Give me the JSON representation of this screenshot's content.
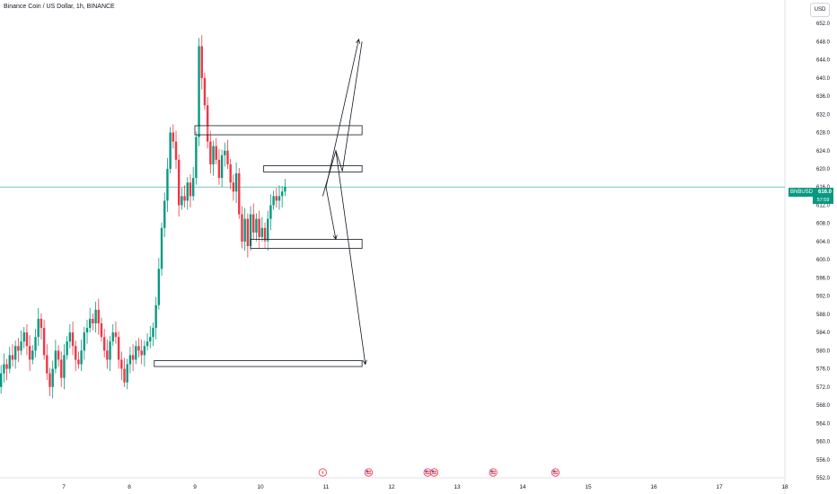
{
  "header": {
    "title": "Binance Coin / US Dollar, 1h, BINANCE",
    "currency": "USD"
  },
  "price_tag": {
    "symbol": "BNBUSD",
    "value": "616.0",
    "timer": "57:59"
  },
  "colors": {
    "up": "#089981",
    "down": "#f23645",
    "price_line": "#26a69a",
    "annotation": "#131722"
  },
  "chart_data": {
    "type": "candlestick",
    "ylim": [
      552,
      654
    ],
    "yticks": [
      "552.0",
      "556.0",
      "560.0",
      "564.0",
      "568.0",
      "572.0",
      "576.0",
      "580.0",
      "584.0",
      "588.0",
      "592.0",
      "596.0",
      "600.0",
      "604.0",
      "608.0",
      "612.0",
      "616.0",
      "620.0",
      "624.0",
      "628.0",
      "632.0",
      "636.0",
      "640.0",
      "644.0",
      "648.0",
      "652.0"
    ],
    "xticks": [
      {
        "label": "7",
        "day": 7
      },
      {
        "label": "8",
        "day": 8
      },
      {
        "label": "9",
        "day": 9
      },
      {
        "label": "10",
        "day": 10
      },
      {
        "label": "11",
        "day": 11
      },
      {
        "label": "12",
        "day": 12
      },
      {
        "label": "13",
        "day": 13
      },
      {
        "label": "14",
        "day": 14
      },
      {
        "label": "15",
        "day": 15
      },
      {
        "label": "16",
        "day": 16
      },
      {
        "label": "17",
        "day": 17
      },
      {
        "label": "18",
        "day": 18
      }
    ],
    "current_price": 616.0,
    "candles_close": [
      572,
      575,
      577,
      576,
      579,
      578,
      581,
      580,
      582,
      584,
      581,
      578,
      580,
      583,
      587,
      585,
      579,
      575,
      572,
      576,
      580,
      578,
      574,
      579,
      582,
      584,
      581,
      578,
      577,
      580,
      584,
      585,
      587,
      586,
      589,
      586,
      583,
      580,
      578,
      582,
      584,
      583,
      578,
      576,
      573,
      577,
      579,
      578,
      581,
      580,
      579,
      581,
      582,
      583,
      585,
      590,
      598,
      607,
      613,
      620,
      628,
      626,
      622,
      612,
      614,
      613,
      617,
      614,
      618,
      627,
      647,
      640,
      634,
      626,
      621,
      625,
      622,
      618,
      623,
      624,
      621,
      617,
      615,
      619,
      610,
      604,
      609,
      603,
      610,
      606,
      609,
      605,
      607,
      604,
      609,
      612,
      614,
      613,
      614,
      615,
      616
    ],
    "zones": [
      {
        "label": "resistance-628",
        "x1": 9.0,
        "x2": 11.55,
        "y1": 627.5,
        "y2": 629.5
      },
      {
        "label": "zone-620",
        "x1": 10.05,
        "x2": 11.55,
        "y1": 619.3,
        "y2": 620.7
      },
      {
        "label": "support-604",
        "x1": 9.85,
        "x2": 11.55,
        "y1": 602.5,
        "y2": 604.5
      },
      {
        "label": "support-577",
        "x1": 8.38,
        "x2": 11.55,
        "y1": 576.5,
        "y2": 577.8
      }
    ],
    "paths": [
      {
        "label": "projection-up",
        "points": [
          [
            11.0,
            616.0
          ],
          [
            11.5,
            648.5
          ]
        ],
        "arrow": true
      },
      {
        "label": "projection-mid",
        "points": [
          [
            10.95,
            614.0
          ],
          [
            11.15,
            624.0
          ],
          [
            11.25,
            619.5
          ],
          [
            11.55,
            648.0
          ]
        ],
        "arrow": false
      },
      {
        "label": "projection-down-short",
        "points": [
          [
            11.0,
            616.0
          ],
          [
            11.15,
            604.5
          ]
        ],
        "arrow": true
      },
      {
        "label": "projection-down-long",
        "points": [
          [
            11.15,
            624.0
          ],
          [
            11.6,
            577.0
          ]
        ],
        "arrow": true
      }
    ],
    "events": [
      {
        "icon": "lightning-icon",
        "day": 10.95
      },
      {
        "icon": "us-flag-icon",
        "day": 11.65
      },
      {
        "icon": "us-flag-icon",
        "day": 12.55
      },
      {
        "icon": "us-flag-icon",
        "day": 12.65
      },
      {
        "icon": "us-flag-icon",
        "day": 13.55
      },
      {
        "icon": "us-flag-icon",
        "day": 14.5
      }
    ]
  }
}
